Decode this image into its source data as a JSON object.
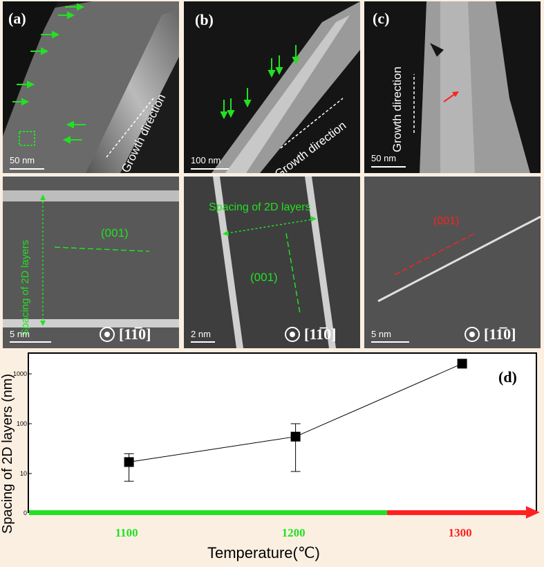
{
  "panels": {
    "a": {
      "label": "(a)",
      "scale": "50 nm",
      "growth": "Growth direction"
    },
    "b": {
      "label": "(b)",
      "scale": "100 nm",
      "growth": "Growth direction"
    },
    "c": {
      "label": "(c)",
      "scale": "50 nm",
      "growth": "Growth direction"
    },
    "a2": {
      "scale": "5 nm",
      "spacing": "Spacing of 2D layers",
      "plane": "(001)",
      "zone": "[11̅0]"
    },
    "b2": {
      "scale": "2 nm",
      "spacing": "Spacing of 2D layers",
      "plane": "(001)",
      "zone": "[11̅0]"
    },
    "c2": {
      "scale": "5 nm",
      "plane": "(001)",
      "zone": "[11̅0]"
    }
  },
  "colors": {
    "green": "#22e022",
    "red": "#ff2020",
    "background": "#fbefe2"
  },
  "chart_data": {
    "type": "scatter",
    "panel_label": "(d)",
    "title": "",
    "xlabel": "Temperature(℃)",
    "ylabel": "Spacing of 2D layers (nm)",
    "y_scale": "log",
    "categories": [
      "1100",
      "1200",
      "1300"
    ],
    "category_colors": [
      "#22e022",
      "#22e022",
      "#ff2020"
    ],
    "x": [
      1100,
      1200,
      1300
    ],
    "y": [
      17,
      55,
      1600
    ],
    "error_low": [
      7,
      11,
      null
    ],
    "error_high": [
      25,
      100,
      null
    ],
    "y_ticks": [
      "0",
      "10",
      "100",
      "1000"
    ],
    "xlim": [
      1040,
      1340
    ],
    "marker": "square"
  }
}
